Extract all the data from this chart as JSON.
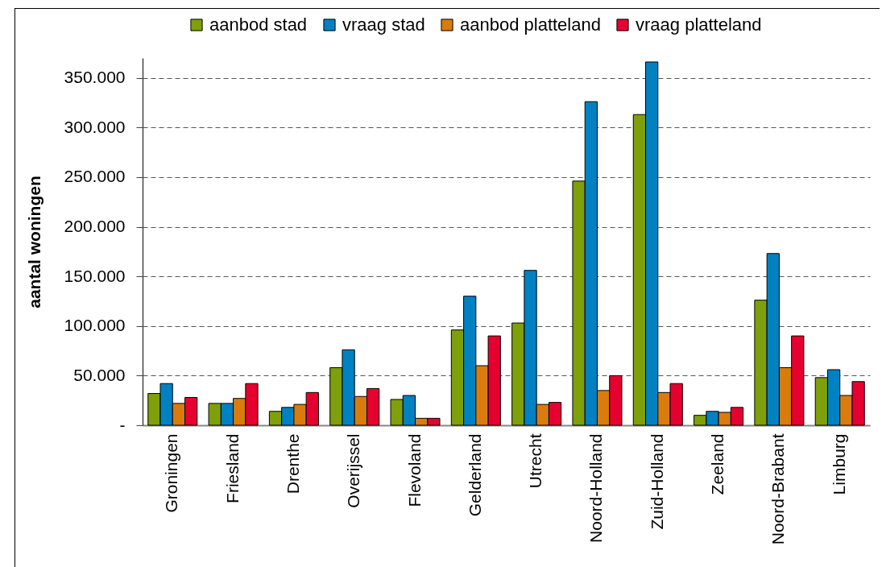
{
  "chart_data": {
    "type": "bar",
    "ylabel": "aantal woningen",
    "categories": [
      "Groningen",
      "Friesland",
      "Drenthe",
      "Overijssel",
      "Flevoland",
      "Gelderland",
      "Utrecht",
      "Noord-Holland",
      "Zuid-Holland",
      "Zeeland",
      "Noord-Brabant",
      "Limburg"
    ],
    "series": [
      {
        "name": "aanbod stad",
        "color": "#7f9f0b",
        "values": [
          32000,
          22000,
          14000,
          58000,
          26000,
          96000,
          103000,
          246000,
          313000,
          10000,
          126000,
          48000
        ]
      },
      {
        "name": "vraag stad",
        "color": "#0081c2",
        "values": [
          42000,
          22000,
          18000,
          76000,
          30000,
          130000,
          156000,
          326000,
          366000,
          14000,
          173000,
          56000
        ]
      },
      {
        "name": "aanbod platteland",
        "color": "#d97c0d",
        "values": [
          22000,
          27000,
          21000,
          29000,
          7000,
          60000,
          21000,
          35000,
          33000,
          13000,
          58000,
          30000
        ]
      },
      {
        "name": "vraag platteland",
        "color": "#e6002f",
        "values": [
          28000,
          42000,
          33000,
          37000,
          7000,
          90000,
          23000,
          50000,
          42000,
          18000,
          90000,
          44000
        ]
      }
    ],
    "ylim": [
      0,
      370000
    ],
    "yticks": [
      {
        "value": 0,
        "label": "-"
      },
      {
        "value": 50000,
        "label": "50.000"
      },
      {
        "value": 100000,
        "label": "100.000"
      },
      {
        "value": 150000,
        "label": "150.000"
      },
      {
        "value": 200000,
        "label": "200.000"
      },
      {
        "value": 250000,
        "label": "250.000"
      },
      {
        "value": 300000,
        "label": "300.000"
      },
      {
        "value": 350000,
        "label": "350.000"
      }
    ],
    "grid": "y",
    "legend": "top"
  }
}
